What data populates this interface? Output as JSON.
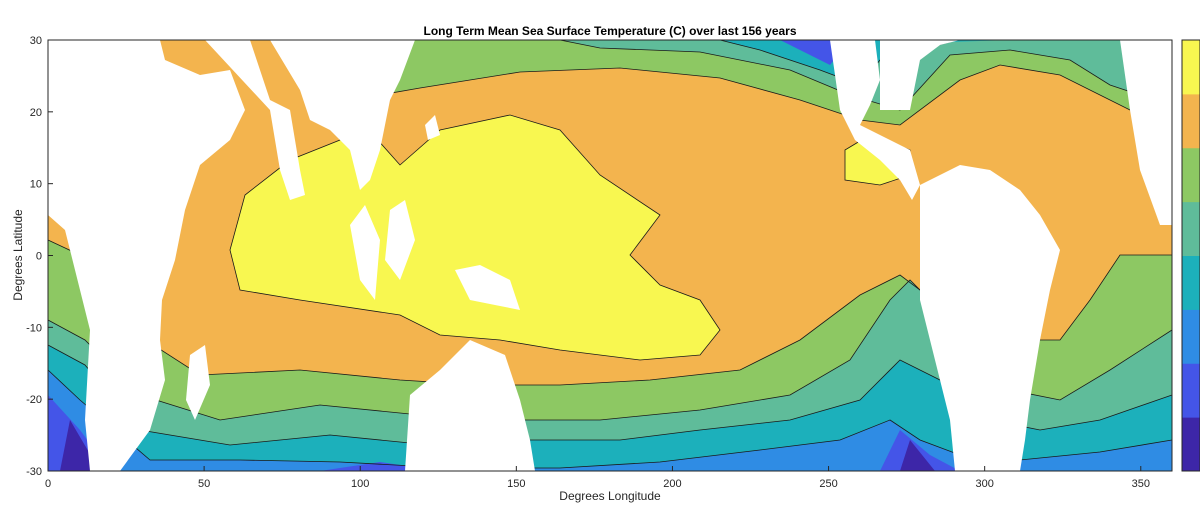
{
  "chart_data": {
    "type": "heatmap",
    "subtype": "filled-contour",
    "title": "Long Term Mean Sea Surface Temperature (C) over last 156 years",
    "xlabel": "Degrees Longitude",
    "ylabel": "Degrees Latitude",
    "xlim": [
      0,
      360
    ],
    "ylim": [
      -30,
      30
    ],
    "xticks": [
      0,
      50,
      100,
      150,
      200,
      250,
      300,
      350
    ],
    "yticks": [
      30,
      20,
      10,
      0,
      -10,
      -20,
      -30
    ],
    "grid": false,
    "colorbar": "right",
    "levels": [
      {
        "band": 1,
        "color": "#3d26a8"
      },
      {
        "band": 2,
        "color": "#4455e8"
      },
      {
        "band": 3,
        "color": "#2f8ce4"
      },
      {
        "band": 4,
        "color": "#1cb0bb"
      },
      {
        "band": 5,
        "color": "#5fbc9a"
      },
      {
        "band": 6,
        "color": "#8dc863"
      },
      {
        "band": 7,
        "color": "#f3b44e"
      },
      {
        "band": 8,
        "color": "#f8f750"
      }
    ]
  }
}
